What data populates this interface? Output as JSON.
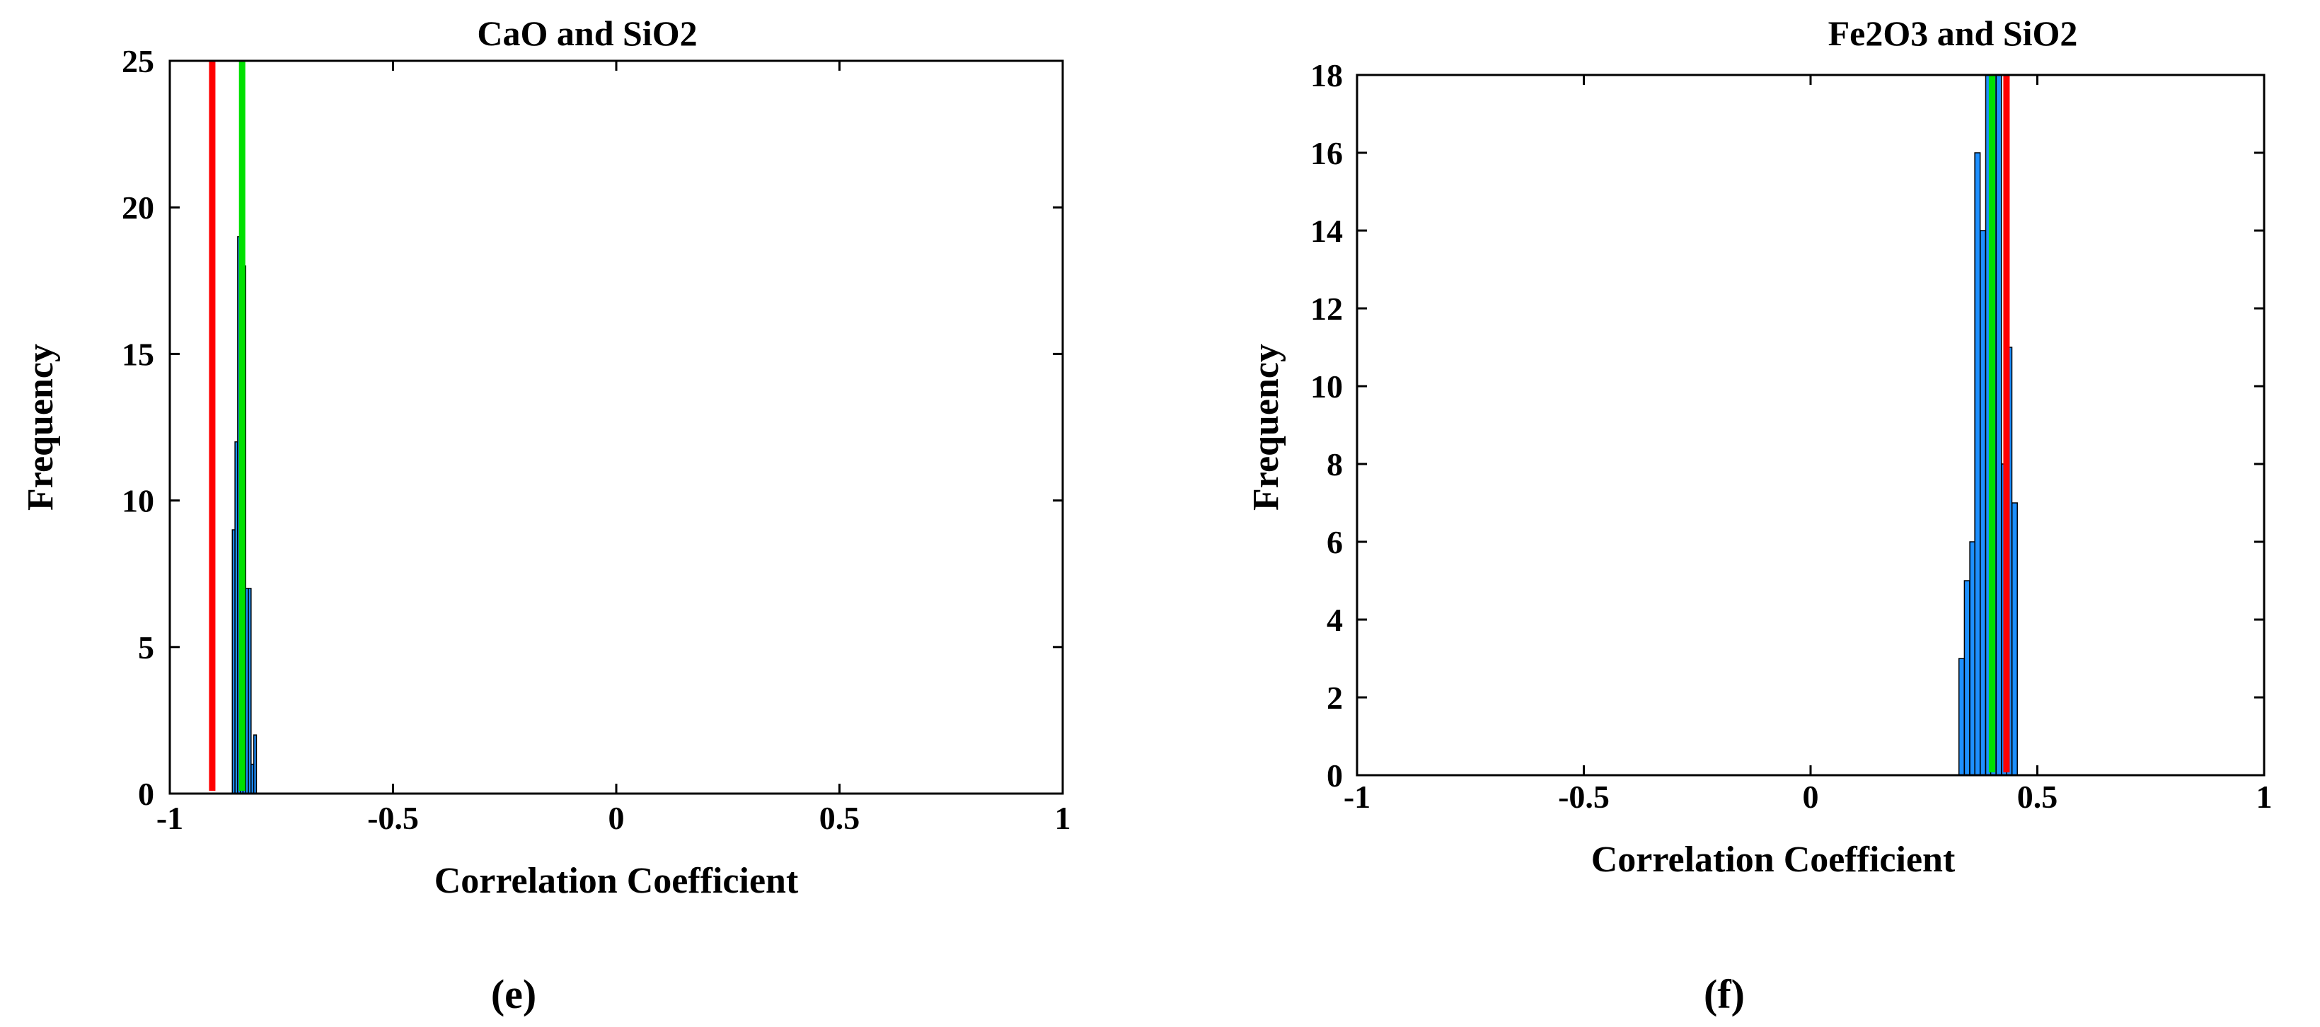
{
  "chart_data": [
    {
      "type": "bar",
      "title": "CaO and SiO2",
      "xlabel": "Correlation Coefficient",
      "ylabel": "Frequency",
      "panel_label": "(e)",
      "xlim": [
        -1,
        1
      ],
      "ylim": [
        0,
        25
      ],
      "xticks": [
        -1,
        -0.5,
        0,
        0.5,
        1
      ],
      "xtick_labels": [
        "-1",
        "-0.5",
        "0",
        "0.5",
        "1"
      ],
      "yticks": [
        0,
        5,
        10,
        15,
        20,
        25
      ],
      "ytick_labels": [
        "0",
        "5",
        "10",
        "15",
        "20",
        "25"
      ],
      "bin_width": 0.006,
      "bins": [
        {
          "x": -0.857,
          "count": 9
        },
        {
          "x": -0.851,
          "count": 12
        },
        {
          "x": -0.845,
          "count": 19
        },
        {
          "x": -0.839,
          "count": 25
        },
        {
          "x": -0.833,
          "count": 18
        },
        {
          "x": -0.827,
          "count": 7
        },
        {
          "x": -0.821,
          "count": 7
        },
        {
          "x": -0.815,
          "count": 1
        },
        {
          "x": -0.809,
          "count": 2
        }
      ],
      "bar_color": "#1e90ff",
      "vlines": [
        {
          "x": -0.905,
          "color": "#ff0000"
        },
        {
          "x": -0.838,
          "color": "#00e000"
        }
      ]
    },
    {
      "type": "bar",
      "title": "Fe2O3 and SiO2",
      "xlabel": "Correlation Coefficient",
      "ylabel": "Frequency",
      "panel_label": "(f)",
      "xlim": [
        -1,
        1
      ],
      "ylim": [
        0,
        18
      ],
      "xticks": [
        -1,
        -0.5,
        0,
        0.5,
        1
      ],
      "xtick_labels": [
        "-1",
        "-0.5",
        "0",
        "0.5",
        "1"
      ],
      "yticks": [
        0,
        2,
        4,
        6,
        8,
        10,
        12,
        14,
        16,
        18
      ],
      "ytick_labels": [
        "0",
        "2",
        "4",
        "6",
        "8",
        "10",
        "12",
        "14",
        "16",
        "18"
      ],
      "bin_width": 0.0117,
      "bins": [
        {
          "x": 0.333,
          "count": 3
        },
        {
          "x": 0.345,
          "count": 5
        },
        {
          "x": 0.357,
          "count": 6
        },
        {
          "x": 0.368,
          "count": 16
        },
        {
          "x": 0.38,
          "count": 14
        },
        {
          "x": 0.392,
          "count": 18
        },
        {
          "x": 0.403,
          "count": 18
        },
        {
          "x": 0.415,
          "count": 18
        },
        {
          "x": 0.427,
          "count": 8
        },
        {
          "x": 0.438,
          "count": 11
        },
        {
          "x": 0.45,
          "count": 7
        }
      ],
      "bar_color": "#1e90ff",
      "vlines": [
        {
          "x": 0.4,
          "color": "#00e000"
        },
        {
          "x": 0.432,
          "color": "#ff0000"
        }
      ]
    }
  ]
}
